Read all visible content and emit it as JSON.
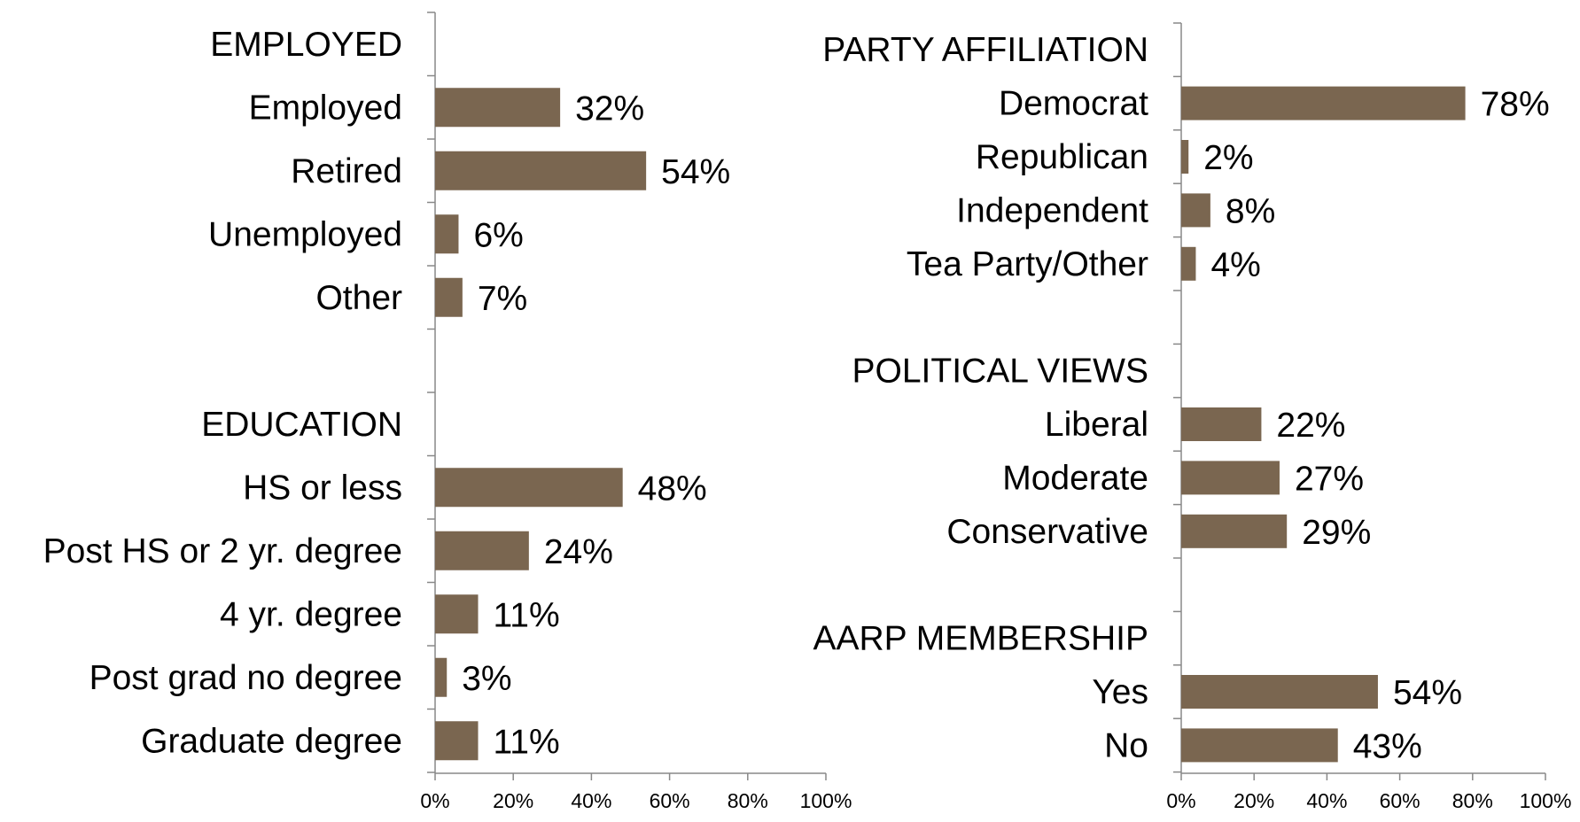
{
  "chart_data": [
    {
      "type": "bar",
      "orientation": "horizontal",
      "xlim": [
        0,
        100
      ],
      "x_ticks": [
        "0%",
        "20%",
        "40%",
        "60%",
        "80%",
        "100%"
      ],
      "groups": [
        {
          "title": "EMPLOYED",
          "categories": [
            "Employed",
            "Retired",
            "Unemployed",
            "Other"
          ],
          "values": [
            32,
            54,
            6,
            7
          ],
          "labels": [
            "32%",
            "54%",
            "6%",
            "7%"
          ]
        },
        {
          "title": "EDUCATION",
          "categories": [
            "HS or less",
            "Post HS or 2 yr. degree",
            "4 yr. degree",
            "Post grad no degree",
            "Graduate degree"
          ],
          "values": [
            48,
            24,
            11,
            3,
            11
          ],
          "labels": [
            "48%",
            "24%",
            "11%",
            "3%",
            "11%"
          ]
        }
      ],
      "bar_color": "#7a6650",
      "axis_color": "#888888",
      "grid": false,
      "legend": "none"
    },
    {
      "type": "bar",
      "orientation": "horizontal",
      "xlim": [
        0,
        100
      ],
      "x_ticks": [
        "0%",
        "20%",
        "40%",
        "60%",
        "80%",
        "100%"
      ],
      "groups": [
        {
          "title": "PARTY AFFILIATION",
          "categories": [
            "Democrat",
            "Republican",
            "Independent",
            "Tea Party/Other"
          ],
          "values": [
            78,
            2,
            8,
            4
          ],
          "labels": [
            "78%",
            "2%",
            "8%",
            "4%"
          ]
        },
        {
          "title": "POLITICAL VIEWS",
          "categories": [
            "Liberal",
            "Moderate",
            "Conservative"
          ],
          "values": [
            22,
            27,
            29
          ],
          "labels": [
            "22%",
            "27%",
            "29%"
          ]
        },
        {
          "title": "AARP MEMBERSHIP",
          "categories": [
            "Yes",
            "No"
          ],
          "values": [
            54,
            43
          ],
          "labels": [
            "54%",
            "43%"
          ]
        }
      ],
      "bar_color": "#7a6650",
      "axis_color": "#888888",
      "grid": false,
      "legend": "none"
    }
  ]
}
